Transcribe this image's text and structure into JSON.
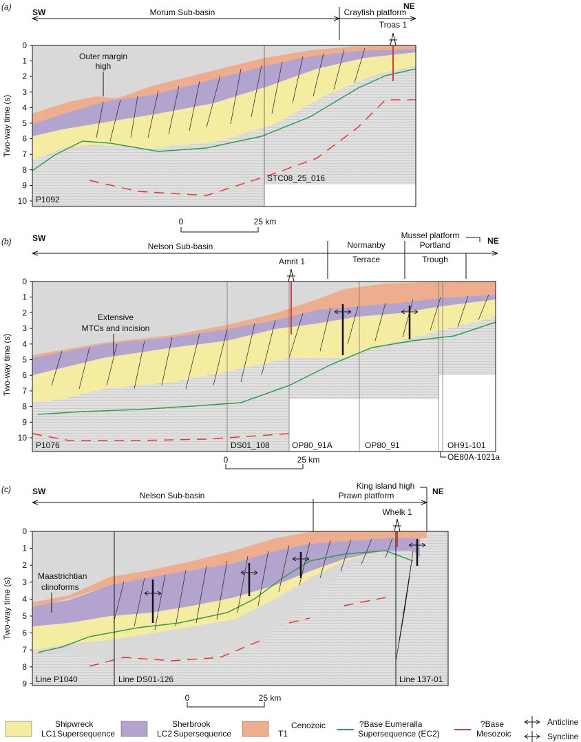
{
  "colors": {
    "shipwreck": "#f4eca1",
    "sherbrook": "#b3a3cf",
    "cenozoic": "#eeae8d",
    "eumeralla_line": "#2f9d4a",
    "mesozoic_line": "#e23a2e",
    "basement": "#e4e4e4",
    "sea": "#d9d9d9"
  },
  "y_axis_label": "Two-way time (s)",
  "panel_a": {
    "tag": "(a)",
    "sw": "SW",
    "ne": "NE",
    "regions": [
      "Morum Sub-basin",
      "Crayfish platform"
    ],
    "well": "Troas 1",
    "annotation": "Outer margin\nhigh",
    "lines": [
      "P1092",
      "STC08_25_016"
    ],
    "ticks": [
      "0",
      "1",
      "2",
      "3",
      "4",
      "5",
      "6",
      "7",
      "8",
      "9",
      "10"
    ],
    "scale": {
      "start": "0",
      "end": "25 km"
    }
  },
  "panel_b": {
    "tag": "(b)",
    "sw": "SW",
    "ne": "NE",
    "regions": [
      "Nelson Sub-basin",
      "Normanby",
      "Terrace",
      "Portland",
      "Trough",
      "Mussel platform"
    ],
    "well": "Amrit 1",
    "annotation": "Extensive\nMTCs and incision",
    "lines": [
      "P1076",
      "DS01_108",
      "OP80_91A",
      "OP80_91",
      "OH91-101",
      "OE80A-1021a"
    ],
    "ticks": [
      "0",
      "1",
      "2",
      "3",
      "4",
      "5",
      "6",
      "7",
      "8",
      "9",
      "10"
    ],
    "scale": {
      "start": "0",
      "end": "25 km"
    }
  },
  "panel_c": {
    "tag": "(c)",
    "sw": "SW",
    "ne": "NE",
    "regions": [
      "Nelson Sub-basin",
      "Prawn platform",
      "King island high"
    ],
    "well": "Whelk 1",
    "annotation": "Maastrichtian\nclinoforms",
    "lines": [
      "Line P1040",
      "Line DS01-126",
      "Line 137-01"
    ],
    "ticks": [
      "0",
      "1",
      "2",
      "3",
      "4",
      "5",
      "6",
      "7",
      "8",
      "9"
    ],
    "scale": {
      "start": "0",
      "end": "25 km"
    }
  },
  "legend": {
    "shipwreck": {
      "name": "Shipwreck",
      "code": "LC1",
      "desc": "Supersequence"
    },
    "sherbrook": {
      "name": "Sherbrook",
      "code": "LC2",
      "desc": "Supersequence"
    },
    "cenozoic": {
      "code": "T1",
      "desc": "Cenozoic"
    },
    "eumeralla": {
      "line1": "?Base Eumeralla",
      "line2": "Supersequence (EC2)"
    },
    "mesozoic": {
      "line1": "?Base",
      "line2": "Mesozoic"
    },
    "anticline": "Anticline",
    "syncline": "Syncline"
  }
}
